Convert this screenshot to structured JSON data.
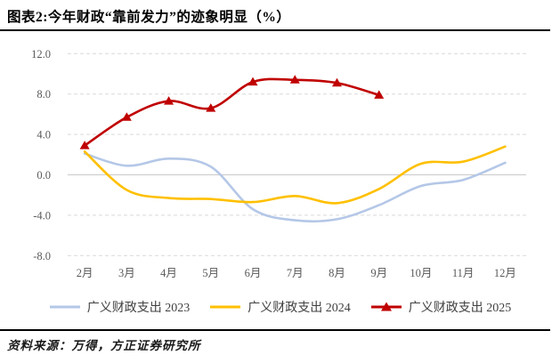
{
  "chart_data": {
    "type": "line",
    "title": "图表2:今年财政“靠前发力”的迹象明显（%）",
    "categories": [
      "2月",
      "3月",
      "4月",
      "5月",
      "6月",
      "7月",
      "8月",
      "9月",
      "10月",
      "11月",
      "12月"
    ],
    "xlabel": "",
    "ylabel": "",
    "ylim": [
      -8.0,
      12.0
    ],
    "yticks": [
      12,
      8,
      4,
      0,
      -4,
      -8
    ],
    "ytick_labels": [
      "12.0",
      "8.0",
      "4.0",
      "0.0",
      "-4.0",
      "-8.0"
    ],
    "grid": "horizontal dashed gridlines, solid zero line, no vertical grid",
    "legend_position": "bottom",
    "line_style": "smoothed",
    "series": [
      {
        "name": "广义财政支出 2023",
        "color": "#B4C7E7",
        "marker": "none",
        "values": [
          2.1,
          0.9,
          1.6,
          0.8,
          -3.4,
          -4.5,
          -4.4,
          -3.0,
          -1.1,
          -0.5,
          1.2
        ]
      },
      {
        "name": "广义财政支出 2024",
        "color": "#FFC000",
        "marker": "none",
        "values": [
          2.3,
          -1.5,
          -2.3,
          -2.4,
          -2.7,
          -2.1,
          -2.8,
          -1.4,
          1.1,
          1.3,
          2.8
        ]
      },
      {
        "name": "广义财政支出 2025",
        "color": "#C00000",
        "marker": "triangle-up",
        "values": [
          2.9,
          5.7,
          7.3,
          6.6,
          9.2,
          9.4,
          9.1,
          7.9,
          null,
          null,
          null
        ]
      }
    ]
  },
  "colors": {
    "gridline": "#D9D9D9",
    "zero_line": "#C9C9C9",
    "axis_text": "#595959",
    "title_text": "#000000",
    "legend_text": "#404040"
  },
  "footer": {
    "source": "资料来源：万得，方正证券研究所"
  }
}
